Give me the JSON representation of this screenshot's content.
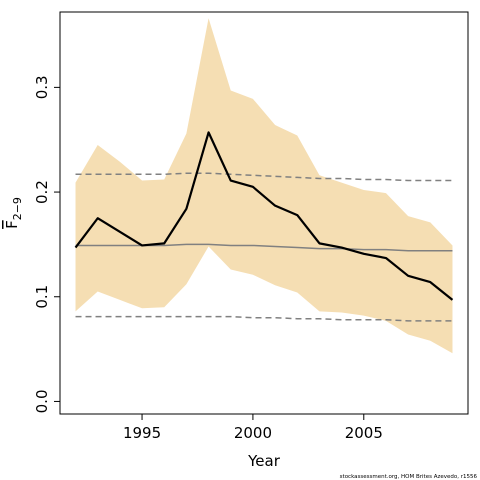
{
  "chart_data": {
    "type": "line",
    "title": "",
    "xlabel": "Year",
    "ylabel_main": "F",
    "ylabel_sub": "2−9",
    "xlim": [
      1991.3,
      2009.7
    ],
    "ylim": [
      -0.012,
      0.372
    ],
    "xticks": [
      1995,
      2000,
      2005
    ],
    "yticks": [
      0.0,
      0.1,
      0.2,
      0.3
    ],
    "ytick_labels": [
      "0.0",
      "0.1",
      "0.2",
      "0.3"
    ],
    "x": [
      1992,
      1993,
      1994,
      1995,
      1996,
      1997,
      1998,
      1999,
      2000,
      2001,
      2002,
      2003,
      2004,
      2005,
      2006,
      2007,
      2008,
      2009
    ],
    "series": [
      {
        "role": "estimate",
        "values": [
          0.147,
          0.175,
          0.162,
          0.149,
          0.151,
          0.184,
          0.257,
          0.211,
          0.205,
          0.187,
          0.178,
          0.151,
          0.147,
          0.141,
          0.137,
          0.12,
          0.114,
          0.097
        ],
        "color": "#000000"
      },
      {
        "role": "ci-lower",
        "values": [
          0.086,
          0.105,
          0.097,
          0.089,
          0.09,
          0.112,
          0.148,
          0.126,
          0.121,
          0.111,
          0.104,
          0.086,
          0.085,
          0.082,
          0.077,
          0.064,
          0.058,
          0.046
        ]
      },
      {
        "role": "ci-upper",
        "values": [
          0.209,
          0.245,
          0.229,
          0.211,
          0.212,
          0.256,
          0.366,
          0.297,
          0.289,
          0.264,
          0.254,
          0.216,
          0.209,
          0.202,
          0.199,
          0.177,
          0.171,
          0.149
        ]
      },
      {
        "role": "reference-median",
        "values": [
          0.149,
          0.149,
          0.149,
          0.149,
          0.149,
          0.15,
          0.15,
          0.149,
          0.149,
          0.148,
          0.147,
          0.146,
          0.146,
          0.145,
          0.145,
          0.144,
          0.144,
          0.144
        ],
        "color": "#808080"
      },
      {
        "role": "reference-upper",
        "values": [
          0.217,
          0.217,
          0.217,
          0.217,
          0.217,
          0.218,
          0.218,
          0.217,
          0.216,
          0.215,
          0.214,
          0.213,
          0.213,
          0.212,
          0.212,
          0.211,
          0.211,
          0.211
        ],
        "color": "#808080"
      },
      {
        "role": "reference-lower",
        "values": [
          0.081,
          0.081,
          0.081,
          0.081,
          0.081,
          0.081,
          0.081,
          0.081,
          0.08,
          0.08,
          0.079,
          0.079,
          0.078,
          0.078,
          0.078,
          0.077,
          0.077,
          0.077
        ],
        "color": "#808080"
      }
    ],
    "band_color": "#f5deb3",
    "grid": false,
    "legend": "none"
  },
  "credit": "stockassessment.org, HOM Brites Azevedo, r1556"
}
